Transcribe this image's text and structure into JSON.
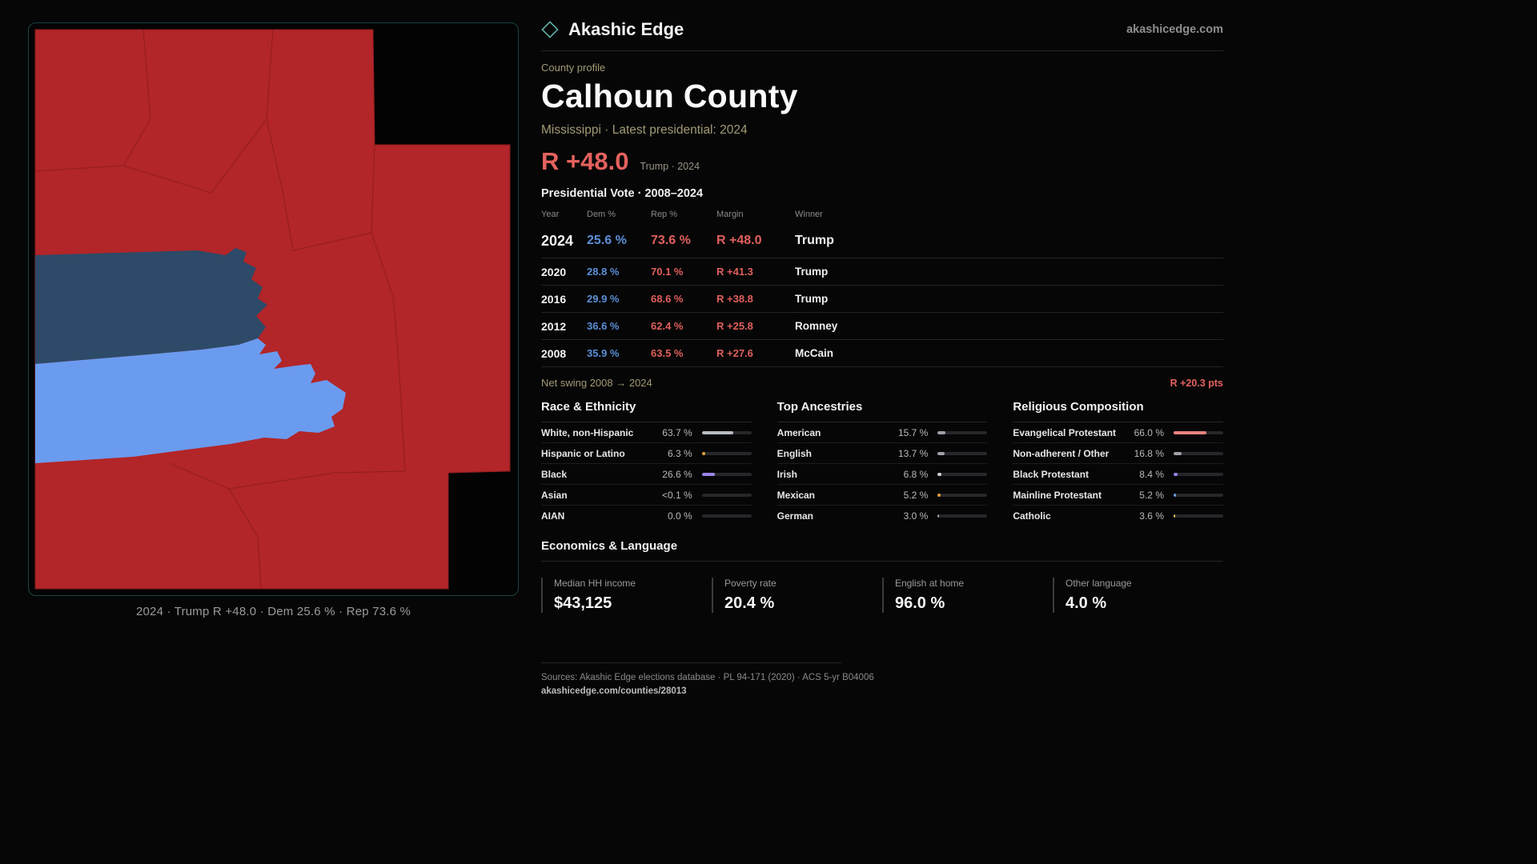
{
  "brand": {
    "name": "Akashic Edge",
    "domain": "akashicedge.com"
  },
  "profile": {
    "kicker": "County profile",
    "title": "Calhoun County",
    "subtitle": "Mississippi · Latest presidential: 2024",
    "headline_margin": "R +48.0",
    "headline_context": "Trump · 2024"
  },
  "vote_table": {
    "title": "Presidential Vote · 2008–2024",
    "columns": [
      "Year",
      "Dem %",
      "Rep %",
      "Margin",
      "Winner"
    ],
    "rows": [
      {
        "year": "2024",
        "dem": "25.6 %",
        "rep": "73.6 %",
        "margin": "R +48.0",
        "winner": "Trump"
      },
      {
        "year": "2020",
        "dem": "28.8 %",
        "rep": "70.1 %",
        "margin": "R +41.3",
        "winner": "Trump"
      },
      {
        "year": "2016",
        "dem": "29.9 %",
        "rep": "68.6 %",
        "margin": "R +38.8",
        "winner": "Trump"
      },
      {
        "year": "2012",
        "dem": "36.6 %",
        "rep": "62.4 %",
        "margin": "R +25.8",
        "winner": "Romney"
      },
      {
        "year": "2008",
        "dem": "35.9 %",
        "rep": "63.5 %",
        "margin": "R +27.6",
        "winner": "McCain"
      }
    ]
  },
  "net_swing": {
    "label": "Net swing 2008 → 2024",
    "value": "R +20.3 pts"
  },
  "demographics": [
    {
      "title": "Race & Ethnicity",
      "rows": [
        {
          "label": "White, non-Hispanic",
          "value": "63.7 %",
          "pct": 63.7,
          "color": "#b9bcc4"
        },
        {
          "label": "Hispanic or Latino",
          "value": "6.3 %",
          "pct": 6.3,
          "color": "#e5a33c"
        },
        {
          "label": "Black",
          "value": "26.6 %",
          "pct": 26.6,
          "color": "#9b85e8"
        },
        {
          "label": "Asian",
          "value": "<0.1 %",
          "pct": 0.05,
          "color": "#9fa1a8"
        },
        {
          "label": "AIAN",
          "value": "0.0 %",
          "pct": 0,
          "color": "#9fa1a8"
        }
      ]
    },
    {
      "title": "Top Ancestries",
      "rows": [
        {
          "label": "American",
          "value": "15.7 %",
          "pct": 15.7,
          "color": "#9fa1a8"
        },
        {
          "label": "English",
          "value": "13.7 %",
          "pct": 13.7,
          "color": "#9fa1a8"
        },
        {
          "label": "Irish",
          "value": "6.8 %",
          "pct": 6.8,
          "color": "#cfd1d6"
        },
        {
          "label": "Mexican",
          "value": "5.2 %",
          "pct": 5.2,
          "color": "#e5a33c"
        },
        {
          "label": "German",
          "value": "3.0 %",
          "pct": 3.0,
          "color": "#9fa1a8"
        }
      ]
    },
    {
      "title": "Religious Composition",
      "rows": [
        {
          "label": "Evangelical Protestant",
          "value": "66.0 %",
          "pct": 66.0,
          "color": "#e8837e"
        },
        {
          "label": "Non-adherent / Other",
          "value": "16.8 %",
          "pct": 16.8,
          "color": "#9fa1a8"
        },
        {
          "label": "Black Protestant",
          "value": "8.4 %",
          "pct": 8.4,
          "color": "#9b85e8"
        },
        {
          "label": "Mainline Protestant",
          "value": "5.2 %",
          "pct": 5.2,
          "color": "#6f9fe0"
        },
        {
          "label": "Catholic",
          "value": "3.6 %",
          "pct": 3.6,
          "color": "#e8c84d"
        }
      ]
    }
  ],
  "economics": {
    "title": "Economics & Language",
    "stats": [
      {
        "label": "Median HH income",
        "value": "$43,125"
      },
      {
        "label": "Poverty rate",
        "value": "20.4 %"
      },
      {
        "label": "English at home",
        "value": "96.0 %"
      },
      {
        "label": "Other language",
        "value": "4.0 %"
      }
    ]
  },
  "map": {
    "caption": "2024 · Trump R +48.0 · Dem 25.6 % · Rep 73.6 %"
  },
  "footer": {
    "sources": "Sources: Akashic Edge elections database · PL 94-171 (2020) · ACS 5-yr B04006",
    "link": "akashicedge.com/counties/28013"
  },
  "colors": {
    "rep_red": "#e0605c",
    "dem_blue": "#5c8fd6",
    "accent_tan": "#a29a75",
    "map_red": "#b22528",
    "map_navy": "#2d4a68",
    "map_lightblue": "#6b9bef",
    "map_border_teal": "#1c4444"
  }
}
